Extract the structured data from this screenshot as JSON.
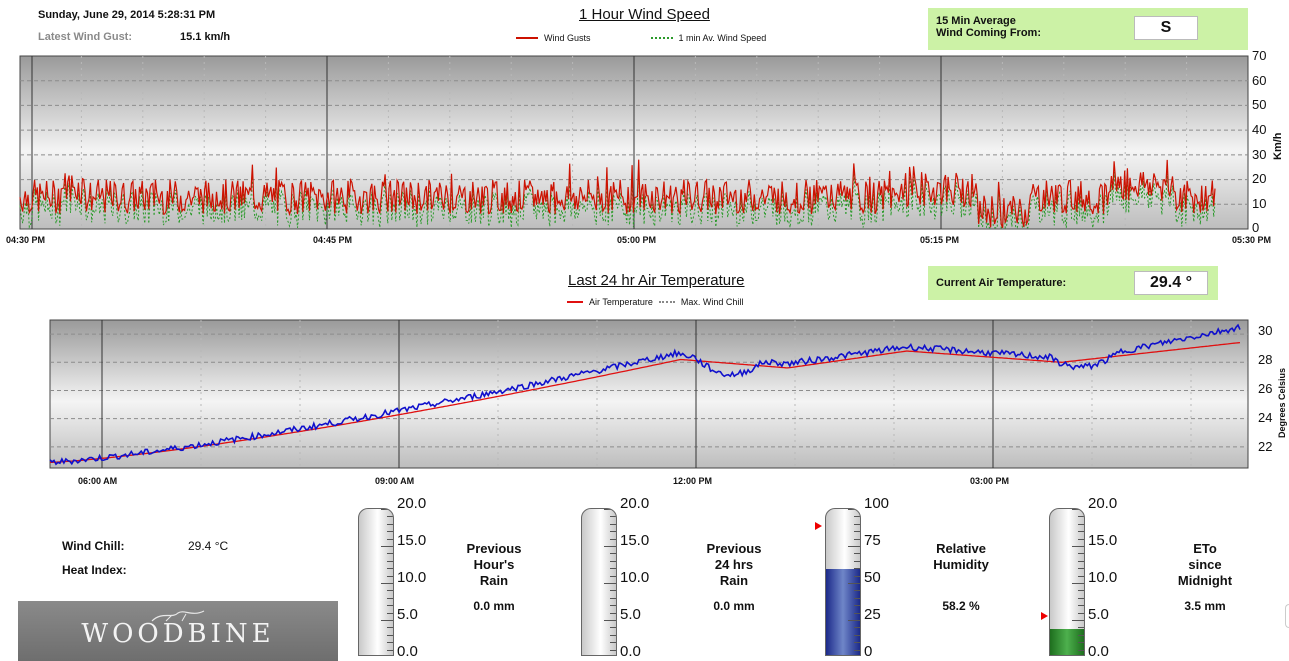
{
  "header": {
    "datetime": "Sunday, June 29, 2014 5:28:31 PM",
    "gust_label": "Latest Wind Gust:",
    "gust_value": "15.1 km/h"
  },
  "wind_chart": {
    "title": "1 Hour Wind Speed",
    "legend": [
      "Wind Gusts",
      "1 min Av. Wind Speed"
    ],
    "direction_label_1": "15 Min Average",
    "direction_label_2": "Wind Coming From:",
    "direction_value": "S",
    "y_unit": "Km/h",
    "x_labels": [
      "04:30 PM",
      "04:45 PM",
      "05:00 PM",
      "05:15 PM",
      "05:30 PM"
    ],
    "y_labels": [
      "70",
      "60",
      "50",
      "40",
      "30",
      "20",
      "10",
      "0"
    ]
  },
  "temp_chart": {
    "title": "Last 24 hr Air Temperature",
    "legend": [
      "Air Temperature",
      "Max. Wind Chill"
    ],
    "current_label": "Current Air Temperature:",
    "current_value": "29.4 °",
    "y_unit": "Degrees Celsius",
    "x_labels": [
      "06:00 AM",
      "09:00 AM",
      "12:00 PM",
      "03:00 PM"
    ],
    "y_labels": [
      "30",
      "28",
      "26",
      "24",
      "22"
    ]
  },
  "conditions": {
    "wind_chill_label": "Wind Chill:",
    "wind_chill_value": "29.4 °C",
    "heat_index_label": "Heat Index:",
    "logo_text": "WOODBINE"
  },
  "gauges": [
    {
      "title_1": "Previous",
      "title_2": "Hour's",
      "title_3": "Rain",
      "value": "0.0 mm",
      "scale": [
        "20.0",
        "15.0",
        "10.0",
        "5.0",
        "0.0"
      ],
      "fill_fraction": 0.0,
      "fill_color": "#1a1a7a"
    },
    {
      "title_1": "Previous",
      "title_2": "24 hrs",
      "title_3": "Rain",
      "value": "0.0 mm",
      "scale": [
        "20.0",
        "15.0",
        "10.0",
        "5.0",
        "0.0"
      ],
      "fill_fraction": 0.0,
      "fill_color": "#1a1a7a"
    },
    {
      "title_1": "Relative",
      "title_2": "Humidity",
      "title_3": "",
      "value": "58.2  %",
      "scale": [
        "100",
        "75",
        "50",
        "25",
        "0"
      ],
      "fill_fraction": 0.582,
      "fill_color": "#1c2a8a",
      "marker_fraction": 0.88
    },
    {
      "title_1": "ETo",
      "title_2": "since",
      "title_3": "Midnight",
      "value": "3.5 mm",
      "scale": [
        "20.0",
        "15.0",
        "10.0",
        "5.0",
        "0.0"
      ],
      "fill_fraction": 0.175,
      "fill_color": "#2e8b2e",
      "marker_fraction": 0.27
    }
  ],
  "colors": {
    "gust_line": "#cc1100",
    "avg_line": "#2a9a2a",
    "temp_line": "#e01010",
    "chill_line": "#1010cc",
    "info_box": "#ccf2a6"
  }
}
